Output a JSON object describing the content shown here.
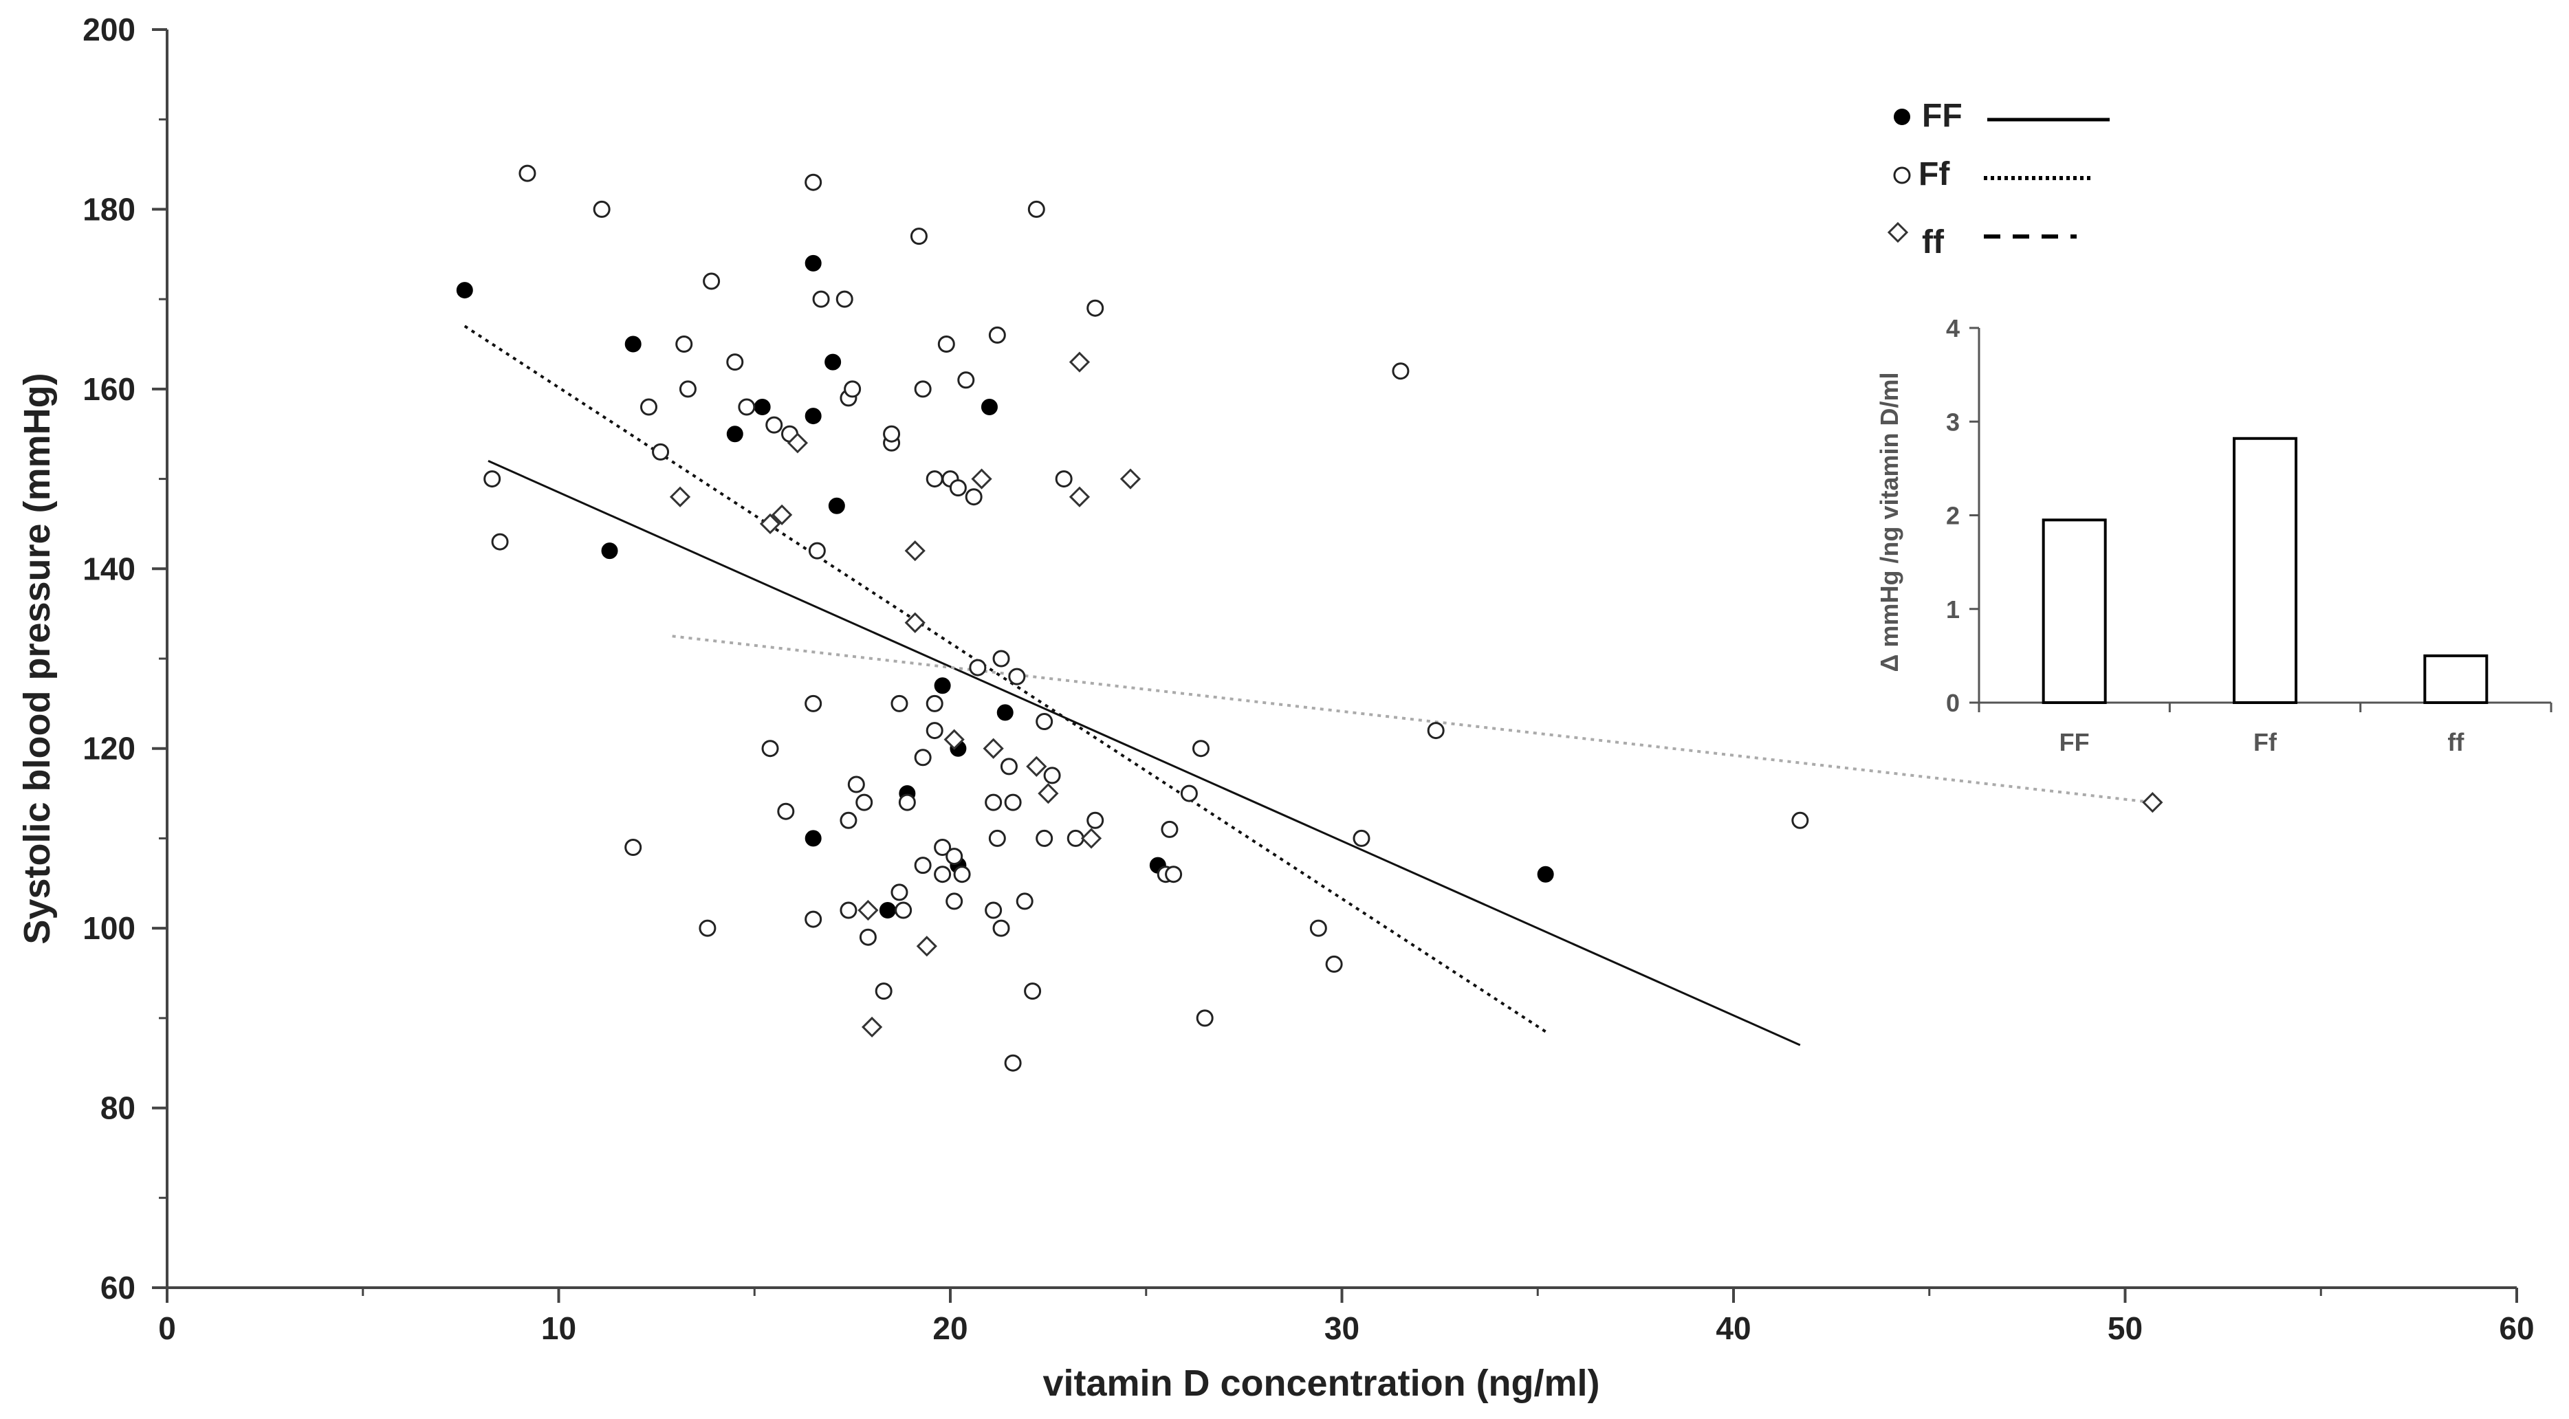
{
  "chart_data": [
    {
      "type": "scatter",
      "title": "",
      "xlabel": "vitamin D concentration (ng/ml)",
      "ylabel": "Systolic blood pressure (mmHg)",
      "xlim": [
        0,
        60
      ],
      "ylim": [
        60,
        200
      ],
      "xticks": [
        "0",
        "10",
        "20",
        "30",
        "40",
        "50",
        "60"
      ],
      "yticks": [
        "60",
        "80",
        "100",
        "120",
        "140",
        "160",
        "180",
        "200"
      ],
      "grid": false,
      "legend_position": "top-right",
      "series": [
        {
          "name": "FF",
          "marker": "filled-circle",
          "line_style": "solid",
          "color": "#000000",
          "points": [
            [
              7.6,
              171
            ],
            [
              11.3,
              142
            ],
            [
              11.9,
              165
            ],
            [
              14.5,
              155
            ],
            [
              15.2,
              158
            ],
            [
              16.5,
              157
            ],
            [
              16.5,
              174
            ],
            [
              16.5,
              110
            ],
            [
              17.0,
              163
            ],
            [
              17.1,
              147
            ],
            [
              17.5,
              160
            ],
            [
              18.4,
              102
            ],
            [
              18.9,
              115
            ],
            [
              19.8,
              127
            ],
            [
              20.2,
              120
            ],
            [
              20.2,
              107
            ],
            [
              21.4,
              124
            ],
            [
              21.0,
              158
            ],
            [
              25.3,
              107
            ],
            [
              35.2,
              106
            ]
          ],
          "trend": [
            [
              8.2,
              152
            ],
            [
              41.7,
              87
            ]
          ]
        },
        {
          "name": "Ff",
          "marker": "open-circle",
          "line_style": "dotted",
          "color": "#000000",
          "points": [
            [
              9.2,
              184
            ],
            [
              11.1,
              180
            ],
            [
              8.3,
              150
            ],
            [
              8.5,
              143
            ],
            [
              12.3,
              158
            ],
            [
              12.6,
              153
            ],
            [
              11.9,
              109
            ],
            [
              13.2,
              165
            ],
            [
              13.3,
              160
            ],
            [
              13.8,
              100
            ],
            [
              13.9,
              172
            ],
            [
              14.5,
              163
            ],
            [
              14.8,
              158
            ],
            [
              15.5,
              156
            ],
            [
              15.9,
              155
            ],
            [
              15.4,
              120
            ],
            [
              15.8,
              113
            ],
            [
              16.5,
              183
            ],
            [
              16.7,
              170
            ],
            [
              17.3,
              170
            ],
            [
              17.4,
              159
            ],
            [
              17.5,
              160
            ],
            [
              16.6,
              142
            ],
            [
              16.5,
              125
            ],
            [
              16.5,
              101
            ],
            [
              17.4,
              112
            ],
            [
              17.6,
              116
            ],
            [
              17.8,
              114
            ],
            [
              17.4,
              102
            ],
            [
              17.9,
              99
            ],
            [
              18.3,
              93
            ],
            [
              18.5,
              154
            ],
            [
              18.5,
              155
            ],
            [
              18.7,
              125
            ],
            [
              18.7,
              104
            ],
            [
              18.8,
              102
            ],
            [
              18.9,
              114
            ],
            [
              19.2,
              177
            ],
            [
              19.3,
              160
            ],
            [
              19.3,
              119
            ],
            [
              19.3,
              107
            ],
            [
              19.6,
              122
            ],
            [
              19.6,
              125
            ],
            [
              19.6,
              150
            ],
            [
              19.8,
              109
            ],
            [
              19.8,
              106
            ],
            [
              19.9,
              165
            ],
            [
              20.0,
              150
            ],
            [
              20.1,
              103
            ],
            [
              20.1,
              108
            ],
            [
              20.3,
              106
            ],
            [
              20.4,
              161
            ],
            [
              20.6,
              148
            ],
            [
              20.2,
              149
            ],
            [
              20.7,
              129
            ],
            [
              21.1,
              114
            ],
            [
              21.2,
              166
            ],
            [
              21.3,
              130
            ],
            [
              21.2,
              110
            ],
            [
              21.3,
              100
            ],
            [
              21.1,
              102
            ],
            [
              21.5,
              118
            ],
            [
              21.6,
              114
            ],
            [
              21.6,
              85
            ],
            [
              21.7,
              128
            ],
            [
              21.9,
              103
            ],
            [
              22.1,
              93
            ],
            [
              22.2,
              180
            ],
            [
              22.4,
              123
            ],
            [
              22.4,
              110
            ],
            [
              22.6,
              117
            ],
            [
              22.9,
              150
            ],
            [
              23.2,
              110
            ],
            [
              23.7,
              169
            ],
            [
              23.7,
              112
            ],
            [
              25.6,
              111
            ],
            [
              25.5,
              106
            ],
            [
              25.7,
              106
            ],
            [
              26.1,
              115
            ],
            [
              26.4,
              120
            ],
            [
              26.5,
              90
            ],
            [
              29.4,
              100
            ],
            [
              29.8,
              96
            ],
            [
              30.5,
              110
            ],
            [
              31.5,
              162
            ],
            [
              32.4,
              122
            ],
            [
              41.7,
              112
            ]
          ],
          "trend": [
            [
              7.6,
              167
            ],
            [
              35.2,
              88.5
            ]
          ]
        },
        {
          "name": "ff",
          "marker": "open-diamond",
          "line_style": "dashed",
          "color": "#aaaaaa",
          "points": [
            [
              13.1,
              148
            ],
            [
              15.4,
              145
            ],
            [
              15.7,
              146
            ],
            [
              16.1,
              154
            ],
            [
              17.9,
              102
            ],
            [
              18.0,
              89
            ],
            [
              19.1,
              142
            ],
            [
              19.1,
              134
            ],
            [
              19.4,
              98
            ],
            [
              20.1,
              121
            ],
            [
              20.8,
              150
            ],
            [
              21.1,
              120
            ],
            [
              22.2,
              118
            ],
            [
              22.5,
              115
            ],
            [
              23.3,
              163
            ],
            [
              23.3,
              148
            ],
            [
              23.6,
              110
            ],
            [
              24.6,
              150
            ],
            [
              50.7,
              114
            ]
          ],
          "trend": [
            [
              12.9,
              132.5
            ],
            [
              50.7,
              114
            ]
          ]
        }
      ]
    },
    {
      "type": "bar",
      "title": "",
      "xlabel": "",
      "ylabel": "Δ mmHg /ng vitamin D/ml",
      "ylim": [
        0,
        4
      ],
      "yticks": [
        "0",
        "1",
        "2",
        "3",
        "4"
      ],
      "categories": [
        "FF",
        "Ff",
        "ff"
      ],
      "values": [
        1.95,
        2.82,
        0.5
      ],
      "grid": false,
      "bar_fill": "#ffffff",
      "bar_stroke": "#000000"
    }
  ]
}
